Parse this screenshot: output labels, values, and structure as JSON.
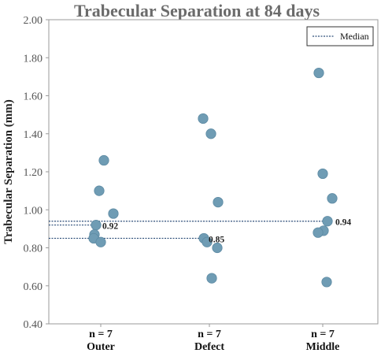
{
  "chart_data": {
    "type": "scatter",
    "title": "Trabecular Separation at 84 days",
    "ylabel": "Trabecular Separation (mm)",
    "xlabel": "",
    "ylim": [
      0.4,
      2.0
    ],
    "yticks": [
      "0.40",
      "0.60",
      "0.80",
      "1.00",
      "1.20",
      "1.40",
      "1.60",
      "1.80",
      "2.00"
    ],
    "grid": false,
    "legend": {
      "label": "Median",
      "placement": "top-right"
    },
    "colors": {
      "point": "#6f9cb4",
      "point_stroke": "#5d8aa3",
      "median_line": "#2e4f7a"
    },
    "categories": [
      {
        "name": "Outer",
        "n_label": "n = 7",
        "median": 0.92,
        "median_label": "0.92",
        "values": [
          1.26,
          1.1,
          0.98,
          0.92,
          0.87,
          0.85,
          0.83
        ]
      },
      {
        "name": "Defect",
        "n_label": "n = 7",
        "median": 0.85,
        "median_label": "0.85",
        "values": [
          1.48,
          1.4,
          1.04,
          0.85,
          0.83,
          0.8,
          0.64
        ]
      },
      {
        "name": "Middle",
        "n_label": "n = 7",
        "median": 0.94,
        "median_label": "0.94",
        "values": [
          1.72,
          1.19,
          1.06,
          0.94,
          0.89,
          0.88,
          0.62
        ]
      }
    ]
  }
}
